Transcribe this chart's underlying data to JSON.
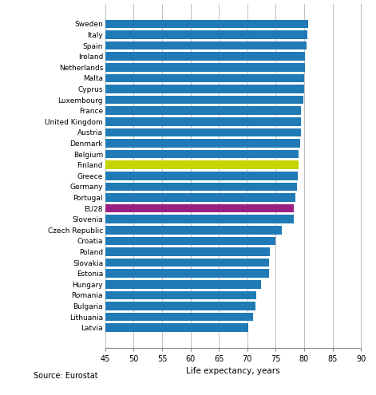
{
  "countries": [
    "Sweden",
    "Italy",
    "Spain",
    "Ireland",
    "Netherlands",
    "Malta",
    "Cyprus",
    "Luxembourg",
    "France",
    "United Kingdom",
    "Austria",
    "Denmark",
    "Belgium",
    "Finland",
    "Greece",
    "Germany",
    "Portugal",
    "EU28",
    "Slovenia",
    "Czech Republic",
    "Croatia",
    "Poland",
    "Slovakia",
    "Estonia",
    "Hungary",
    "Romania",
    "Bulgaria",
    "Lithuania",
    "Latvia"
  ],
  "values": [
    80.7,
    80.6,
    80.4,
    80.2,
    80.1,
    80.0,
    80.0,
    79.8,
    79.5,
    79.4,
    79.4,
    79.3,
    79.0,
    79.0,
    78.9,
    78.7,
    78.4,
    78.2,
    78.2,
    76.1,
    74.9,
    73.9,
    73.8,
    73.8,
    72.4,
    71.6,
    71.4,
    71.0,
    70.2
  ],
  "colors": [
    "#1f7ab5",
    "#1f7ab5",
    "#1f7ab5",
    "#1f7ab5",
    "#1f7ab5",
    "#1f7ab5",
    "#1f7ab5",
    "#1f7ab5",
    "#1f7ab5",
    "#1f7ab5",
    "#1f7ab5",
    "#1f7ab5",
    "#1f7ab5",
    "#c6d400",
    "#1f7ab5",
    "#1f7ab5",
    "#1f7ab5",
    "#9b1f82",
    "#1f7ab5",
    "#1f7ab5",
    "#1f7ab5",
    "#1f7ab5",
    "#1f7ab5",
    "#1f7ab5",
    "#1f7ab5",
    "#1f7ab5",
    "#1f7ab5",
    "#1f7ab5",
    "#1f7ab5"
  ],
  "xlabel": "Life expectancy, years",
  "source": "Source: Eurostat",
  "xlim": [
    45,
    90
  ],
  "xticks": [
    45,
    50,
    55,
    60,
    65,
    70,
    75,
    80,
    85,
    90
  ],
  "bar_height": 0.78,
  "grid_color": "#c0c0c0",
  "background_color": "#ffffff",
  "bar_blue": "#1f7ab5",
  "bar_green": "#c6d400",
  "bar_purple": "#9b1f82"
}
